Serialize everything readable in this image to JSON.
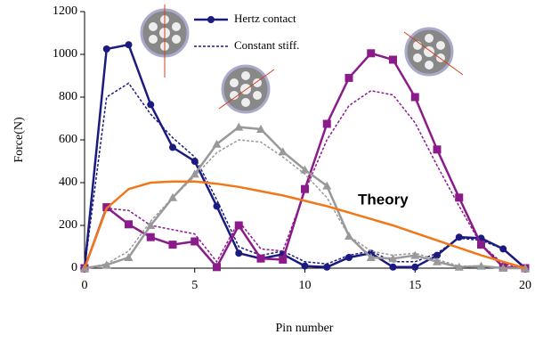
{
  "chart_data": {
    "type": "line",
    "xlabel": "Pin number",
    "ylabel": "Force(N)",
    "xlim": [
      0,
      20
    ],
    "xticks": [
      0,
      5,
      10,
      15,
      20
    ],
    "ylim": [
      0,
      1200
    ],
    "yticks": [
      0,
      200,
      400,
      600,
      800,
      1000,
      1200
    ],
    "grid": false,
    "legend": "top-center",
    "x": [
      0,
      1,
      2,
      3,
      4,
      5,
      6,
      7,
      8,
      9,
      10,
      11,
      12,
      13,
      14,
      15,
      16,
      17,
      18,
      19,
      20
    ],
    "series": [
      {
        "name": "Hertz contact",
        "color": "#1a1a80",
        "marker": "circle",
        "dash": false,
        "legend": true,
        "values": [
          0,
          1025,
          1045,
          765,
          565,
          500,
          290,
          70,
          45,
          65,
          10,
          5,
          50,
          70,
          5,
          5,
          60,
          145,
          140,
          90,
          0
        ]
      },
      {
        "name": "Constant stiff.",
        "color": "#1a1a80",
        "marker": "none",
        "dash": true,
        "legend": true,
        "values": [
          0,
          800,
          865,
          720,
          610,
          520,
          320,
          100,
          60,
          80,
          30,
          20,
          60,
          80,
          30,
          30,
          70,
          140,
          130,
          90,
          0
        ]
      },
      {
        "color": "#8b1a8b",
        "marker": "square",
        "dash": false,
        "values": [
          0,
          285,
          205,
          145,
          110,
          125,
          5,
          200,
          45,
          40,
          370,
          675,
          890,
          1005,
          975,
          800,
          555,
          330,
          110,
          5,
          0
        ]
      },
      {
        "color": "#8b1a8b",
        "marker": "none",
        "dash": true,
        "values": [
          0,
          280,
          270,
          200,
          180,
          160,
          30,
          220,
          90,
          80,
          360,
          600,
          760,
          830,
          810,
          680,
          480,
          290,
          110,
          20,
          0
        ]
      },
      {
        "color": "#999999",
        "marker": "triangle",
        "dash": false,
        "values": [
          0,
          15,
          50,
          200,
          330,
          440,
          580,
          660,
          650,
          545,
          460,
          385,
          150,
          50,
          45,
          60,
          30,
          5,
          10,
          0,
          0
        ]
      },
      {
        "color": "#999999",
        "marker": "none",
        "dash": true,
        "values": [
          0,
          20,
          80,
          220,
          330,
          430,
          540,
          600,
          590,
          520,
          440,
          330,
          150,
          80,
          60,
          70,
          40,
          10,
          10,
          0,
          0
        ]
      },
      {
        "name": "Theory",
        "color": "#f07818",
        "marker": "none",
        "dash": false,
        "inline_label": true,
        "values": [
          0,
          280,
          370,
          400,
          405,
          405,
          395,
          380,
          360,
          340,
          315,
          290,
          260,
          230,
          200,
          165,
          130,
          95,
          60,
          30,
          0
        ]
      }
    ]
  }
}
